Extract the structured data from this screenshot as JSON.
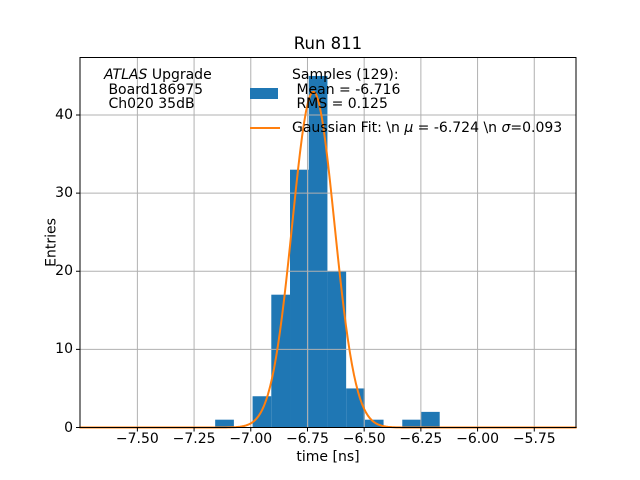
{
  "figure": {
    "title": "Run 811",
    "xlabel": "time [ns]",
    "ylabel": "Entries"
  },
  "annotation": {
    "line1_italic": "ATLAS",
    "line1_rest": " Upgrade",
    "line2": " Board186975",
    "line3": " Ch020 35dB"
  },
  "legend": {
    "samples_line1": "Samples (129):",
    "samples_line2": " Mean = -6.716",
    "samples_line3": " RMS = 0.125",
    "gaussian_parts": [
      {
        "text": "Gaussian Fit: \\n ",
        "italic": false
      },
      {
        "text": "μ",
        "italic": true
      },
      {
        "text": " = -6.724 \\n ",
        "italic": false
      },
      {
        "text": "σ",
        "italic": true
      },
      {
        "text": "=0.093",
        "italic": false
      }
    ]
  },
  "chart_data": {
    "type": "bar",
    "subtype": "histogram",
    "title": "Run 811",
    "xlabel": "time [ns]",
    "ylabel": "Entries",
    "samples": 129,
    "mean": -6.716,
    "rms": 0.125,
    "bin_start": -7.157,
    "bin_width": 0.0825,
    "counts": [
      1,
      0,
      4,
      17,
      33,
      45,
      20,
      5,
      1,
      0,
      1,
      2
    ],
    "gaussian_fit": {
      "mu": -6.724,
      "sigma": 0.093,
      "amplitude": 43
    },
    "xlim": [
      -7.753,
      -5.566
    ],
    "ylim": [
      0,
      47.36
    ],
    "x_ticks": [
      -7.5,
      -7.25,
      -7.0,
      -6.75,
      -6.5,
      -6.25,
      -6.0,
      -5.75
    ],
    "x_tick_labels": [
      "−7.50",
      "−7.25",
      "−7.00",
      "−6.75",
      "−6.50",
      "−6.25",
      "−6.00",
      "−5.75"
    ],
    "y_ticks": [
      0,
      10,
      20,
      30,
      40
    ],
    "y_tick_labels": [
      "0",
      "10",
      "20",
      "30",
      "40"
    ],
    "grid": true,
    "legend_position": "upper center",
    "bar_color": "#1f77b4",
    "curve_color": "#ff7f0e",
    "grid_color": "#b0b0b0",
    "spine_color": "#000000"
  }
}
